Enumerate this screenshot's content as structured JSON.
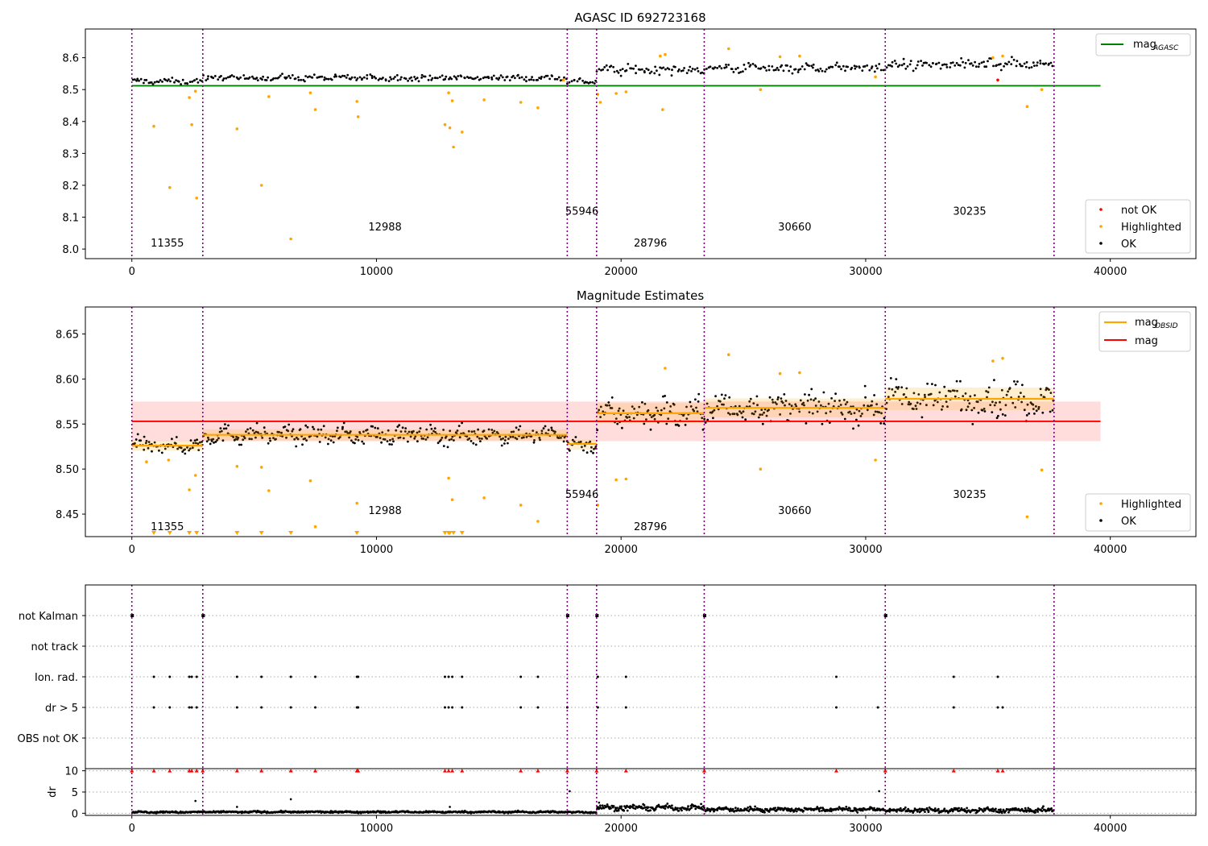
{
  "chart_data": [
    {
      "type": "scatter",
      "title": "AGASC ID 692723168",
      "xlabel": "",
      "ylabel": "",
      "xlim": [
        -1900,
        43500
      ],
      "ylim": [
        7.97,
        8.69
      ],
      "xticks": [
        0,
        10000,
        20000,
        30000,
        40000
      ],
      "yticks": [
        8.0,
        8.1,
        8.2,
        8.3,
        8.4,
        8.5,
        8.6
      ],
      "ytick_labels": [
        "8.0",
        "8.1",
        "8.2",
        "8.3",
        "8.4",
        "8.5",
        "8.6"
      ],
      "grid": false,
      "obsid_boundaries": [
        0,
        2900,
        17800,
        19000,
        23400,
        30800,
        37700
      ],
      "obsid_labels": [
        {
          "label": "11355",
          "x": 1450,
          "y": 8.008
        },
        {
          "label": "12988",
          "x": 10350,
          "y": 8.058
        },
        {
          "label": "55946",
          "x": 18400,
          "y": 8.108
        },
        {
          "label": "28796",
          "x": 21200,
          "y": 8.008
        },
        {
          "label": "30660",
          "x": 27100,
          "y": 8.058
        },
        {
          "label": "30235",
          "x": 34250,
          "y": 8.108
        }
      ],
      "bands": [
        {
          "x0": 0,
          "x1": 2900,
          "mean": 8.526,
          "amp": 0.008
        },
        {
          "x0": 2900,
          "x1": 17800,
          "mean": 8.537,
          "amp": 0.009
        },
        {
          "x0": 17800,
          "x1": 19000,
          "mean": 8.526,
          "amp": 0.008
        },
        {
          "x0": 19000,
          "x1": 23400,
          "mean": 8.562,
          "amp": 0.014
        },
        {
          "x0": 23400,
          "x1": 30800,
          "mean": 8.568,
          "amp": 0.013
        },
        {
          "x0": 30800,
          "x1": 37700,
          "mean": 8.578,
          "amp": 0.016
        }
      ],
      "series": [
        {
          "name": "mag_AGASC",
          "kind": "hline",
          "y": 8.512,
          "x": [
            0,
            39600
          ],
          "color": "#008000"
        },
        {
          "name": "not OK",
          "kind": "scatter",
          "color": "#ff0000",
          "points": [
            [
              35400,
              8.53
            ]
          ]
        },
        {
          "name": "Highlighted",
          "kind": "scatter",
          "color": "#ffa500",
          "points": [
            [
              900,
              8.385
            ],
            [
              1550,
              8.193
            ],
            [
              2350,
              8.475
            ],
            [
              2450,
              8.39
            ],
            [
              2600,
              8.495
            ],
            [
              2650,
              8.16
            ],
            [
              4300,
              8.377
            ],
            [
              5300,
              8.2
            ],
            [
              5600,
              8.478
            ],
            [
              6500,
              8.032
            ],
            [
              7300,
              8.49
            ],
            [
              7500,
              8.437
            ],
            [
              9200,
              8.463
            ],
            [
              9250,
              8.415
            ],
            [
              12800,
              8.39
            ],
            [
              12950,
              8.49
            ],
            [
              13000,
              8.38
            ],
            [
              13100,
              8.465
            ],
            [
              13150,
              8.32
            ],
            [
              13500,
              8.367
            ],
            [
              14400,
              8.468
            ],
            [
              15900,
              8.46
            ],
            [
              16600,
              8.443
            ],
            [
              17650,
              8.53
            ],
            [
              19050,
              8.485
            ],
            [
              19150,
              8.46
            ],
            [
              19800,
              8.488
            ],
            [
              20200,
              8.493
            ],
            [
              21700,
              8.437
            ],
            [
              21800,
              8.61
            ],
            [
              24400,
              8.628
            ],
            [
              25700,
              8.5
            ],
            [
              30400,
              8.54
            ],
            [
              35200,
              8.6
            ],
            [
              35600,
              8.605
            ],
            [
              36600,
              8.447
            ],
            [
              37200,
              8.5
            ],
            [
              21600,
              8.605
            ],
            [
              26500,
              8.603
            ],
            [
              27300,
              8.605
            ]
          ]
        },
        {
          "name": "OK",
          "kind": "scatter",
          "color": "#000000",
          "points": []
        }
      ],
      "legend_upper": [
        "mag_AGASC"
      ],
      "legend_lower": [
        "not OK",
        "Highlighted",
        "OK"
      ],
      "legend_upper_loc": "upper-right",
      "legend_lower_loc": "lower-right"
    },
    {
      "type": "scatter",
      "title": "Magnitude Estimates",
      "xlabel": "",
      "ylabel": "",
      "xlim": [
        -1900,
        43500
      ],
      "ylim": [
        8.425,
        8.68
      ],
      "xticks": [
        0,
        10000,
        20000,
        30000,
        40000
      ],
      "yticks": [
        8.45,
        8.5,
        8.55,
        8.6,
        8.65
      ],
      "ytick_labels": [
        "8.45",
        "8.50",
        "8.55",
        "8.60",
        "8.65"
      ],
      "grid": false,
      "obsid_boundaries": [
        0,
        2900,
        17800,
        19000,
        23400,
        30800,
        37700
      ],
      "obsid_labels": [
        {
          "label": "11355",
          "x": 1450,
          "y": 8.432
        },
        {
          "label": "12988",
          "x": 10350,
          "y": 8.45
        },
        {
          "label": "55946",
          "x": 18400,
          "y": 8.468
        },
        {
          "label": "28796",
          "x": 21200,
          "y": 8.432
        },
        {
          "label": "30660",
          "x": 27100,
          "y": 8.45
        },
        {
          "label": "30235",
          "x": 34250,
          "y": 8.468
        }
      ],
      "mag_band": {
        "y0": 8.531,
        "y1": 8.575,
        "x": [
          0,
          39600
        ],
        "color": "#ffdddd"
      },
      "bands": [
        {
          "x0": 0,
          "x1": 2900,
          "mean": 8.526,
          "amp": 0.008
        },
        {
          "x0": 2900,
          "x1": 17800,
          "mean": 8.538,
          "amp": 0.009
        },
        {
          "x0": 17800,
          "x1": 19000,
          "mean": 8.527,
          "amp": 0.008
        },
        {
          "x0": 19000,
          "x1": 23400,
          "mean": 8.562,
          "amp": 0.016
        },
        {
          "x0": 23400,
          "x1": 30800,
          "mean": 8.568,
          "amp": 0.015
        },
        {
          "x0": 30800,
          "x1": 37700,
          "mean": 8.578,
          "amp": 0.018
        }
      ],
      "series": [
        {
          "name": "mag_OBSID",
          "kind": "segments",
          "color": "#ffa500",
          "segments": [
            [
              0,
              2900,
              8.526
            ],
            [
              2900,
              17800,
              8.538
            ],
            [
              17800,
              19000,
              8.528
            ],
            [
              19000,
              23400,
              8.562
            ],
            [
              23400,
              30800,
              8.568
            ],
            [
              30800,
              37700,
              8.578
            ]
          ]
        },
        {
          "name": "mag",
          "kind": "hline",
          "y": 8.553,
          "x": [
            0,
            39600
          ],
          "color": "#ff0000"
        },
        {
          "name": "Highlighted",
          "kind": "scatter",
          "color": "#ffa500",
          "points": [
            [
              600,
              8.508
            ],
            [
              1500,
              8.51
            ],
            [
              2350,
              8.477
            ],
            [
              2600,
              8.493
            ],
            [
              4300,
              8.503
            ],
            [
              5300,
              8.502
            ],
            [
              5600,
              8.476
            ],
            [
              7300,
              8.487
            ],
            [
              7500,
              8.436
            ],
            [
              9200,
              8.462
            ],
            [
              12950,
              8.49
            ],
            [
              13100,
              8.466
            ],
            [
              14400,
              8.468
            ],
            [
              15900,
              8.46
            ],
            [
              16600,
              8.442
            ],
            [
              19050,
              8.46
            ],
            [
              19800,
              8.488
            ],
            [
              20200,
              8.489
            ],
            [
              21800,
              8.612
            ],
            [
              24400,
              8.627
            ],
            [
              25700,
              8.5
            ],
            [
              26500,
              8.606
            ],
            [
              27300,
              8.607
            ],
            [
              30400,
              8.51
            ],
            [
              35200,
              8.62
            ],
            [
              35600,
              8.623
            ],
            [
              36600,
              8.447
            ],
            [
              37200,
              8.499
            ]
          ]
        },
        {
          "name": "Highlighted-below",
          "kind": "markers-below",
          "color": "#ffa500",
          "x": [
            900,
            1550,
            2350,
            2650,
            4300,
            5300,
            6500,
            9200,
            12800,
            12950,
            13000,
            13150,
            13500
          ]
        },
        {
          "name": "OK",
          "kind": "scatter",
          "color": "#000000",
          "points": []
        }
      ],
      "legend_upper": [
        "mag_OBSID",
        "mag"
      ],
      "legend_lower": [
        "Highlighted",
        "OK"
      ],
      "legend_upper_loc": "upper-right",
      "legend_lower_loc": "lower-right"
    },
    {
      "type": "scatter",
      "title": "",
      "xlim": [
        -1900,
        43500
      ],
      "xticks": [
        0,
        10000,
        20000,
        30000,
        40000
      ],
      "categories": [
        "not Kalman",
        "not track",
        "Ion. rad.",
        "dr > 5",
        "OBS not OK"
      ],
      "obsid_boundaries": [
        0,
        2900,
        17800,
        19000,
        23400,
        30800,
        37700
      ],
      "flags": [
        {
          "category": "not Kalman",
          "x": [
            0,
            2900,
            17800,
            19000,
            23400,
            30800
          ]
        },
        {
          "category": "not track",
          "x": []
        },
        {
          "category": "Ion. rad.",
          "x": [
            900,
            1550,
            2350,
            2450,
            2650,
            4300,
            5300,
            6500,
            7500,
            9200,
            9250,
            12800,
            12950,
            13100,
            13500,
            15900,
            16600,
            19050,
            20200,
            28800,
            33600,
            35400
          ]
        },
        {
          "category": "dr > 5",
          "x": [
            900,
            1550,
            2350,
            2450,
            2650,
            4300,
            5300,
            6500,
            7500,
            9200,
            9250,
            12800,
            12950,
            13100,
            13500,
            15900,
            16600,
            17800,
            19050,
            20200,
            28800,
            30500,
            33600,
            35400,
            35600
          ]
        },
        {
          "category": "OBS not OK",
          "x": []
        }
      ],
      "dr_panel": {
        "ylabel": "dr",
        "ylim": [
          -0.5,
          10.5
        ],
        "yticks": [
          0,
          5,
          10
        ],
        "ytick_labels": [
          "0",
          "5",
          "10"
        ],
        "red_points_y": 10,
        "red_points_x": [
          0,
          900,
          1550,
          2350,
          2450,
          2650,
          2900,
          4300,
          5300,
          6500,
          7500,
          9200,
          9250,
          12800,
          12950,
          13100,
          13500,
          15900,
          16600,
          17800,
          19000,
          20200,
          23400,
          28800,
          30800,
          33600,
          35400,
          35600
        ],
        "outliers": [
          [
            2600,
            2.9
          ],
          [
            4300,
            1.5
          ],
          [
            6500,
            3.3
          ],
          [
            13000,
            1.5
          ],
          [
            17900,
            5.2
          ],
          [
            19100,
            2.5
          ],
          [
            23400,
            1.3
          ],
          [
            30550,
            5.2
          ]
        ],
        "bands": [
          {
            "x0": 0,
            "x1": 2900,
            "mean": 0.25,
            "amp": 0.2
          },
          {
            "x0": 2900,
            "x1": 17800,
            "mean": 0.3,
            "amp": 0.2
          },
          {
            "x0": 17800,
            "x1": 19000,
            "mean": 0.25,
            "amp": 0.2
          },
          {
            "x0": 19000,
            "x1": 23400,
            "mean": 1.3,
            "amp": 0.6
          },
          {
            "x0": 23400,
            "x1": 30800,
            "mean": 0.9,
            "amp": 0.5
          },
          {
            "x0": 30800,
            "x1": 37700,
            "mean": 0.7,
            "amp": 0.5
          }
        ]
      }
    }
  ]
}
